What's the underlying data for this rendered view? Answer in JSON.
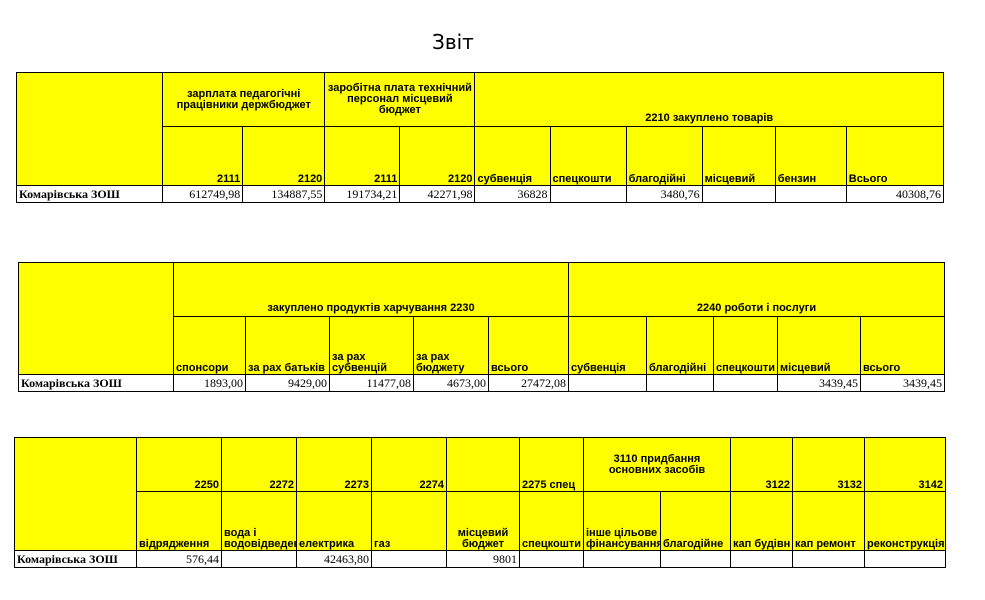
{
  "title": "Звіт",
  "colors": {
    "header_bg": "#ffff00",
    "border": "#000000"
  },
  "table1": {
    "group_salary_ped": "зарплата педагогічні працівники держбюджет",
    "group_salary_tech": "заробітна плата технічний персонал місцевий бюджет",
    "group_2210": "2210 закуплено товарів",
    "columns": [
      "2111",
      "2120",
      "2111",
      "2120",
      "субвенція",
      "спецкошти",
      "благодійні",
      "місцевий",
      "бензин",
      "Всього"
    ],
    "row": {
      "name": "Комарівська ЗОШ",
      "values": [
        "612749,98",
        "134887,55",
        "191734,21",
        "42271,98",
        "36828",
        "",
        "3480,76",
        "",
        "",
        "40308,76"
      ]
    }
  },
  "table2": {
    "group_2230": "закуплено продуктів харчування 2230",
    "group_2240": "2240 роботи і послуги",
    "columns": [
      "спонсори",
      "за рах батьків",
      "за рах субвенцій",
      "за рах бюджету",
      "всього",
      "субвенція",
      "благодійні",
      "спецкошти",
      "місцевий",
      "всього"
    ],
    "row": {
      "name": "Комарівська ЗОШ",
      "values": [
        "1893,00",
        "9429,00",
        "11477,08",
        "4673,00",
        "27472,08",
        "",
        "",
        "",
        "3439,45",
        "3439,45"
      ]
    }
  },
  "table3": {
    "codes": [
      "2250",
      "2272",
      "2273",
      "2274",
      "",
      "2275 спец",
      "3110 придбання основних засобів",
      "3122",
      "3132",
      "3142"
    ],
    "columns": [
      "відрядження",
      "вода і водовідведення",
      "електрика",
      "газ",
      "місцевий бюджет",
      "спецкошти",
      "інше цільове фінансування",
      "благодійне",
      "кап будівн",
      "кап ремонт",
      "реконструкція"
    ],
    "row": {
      "name": "Комарівська ЗОШ",
      "values": [
        "576,44",
        "",
        "42463,80",
        "",
        "9801",
        "",
        "",
        "",
        "",
        "",
        ""
      ]
    }
  }
}
